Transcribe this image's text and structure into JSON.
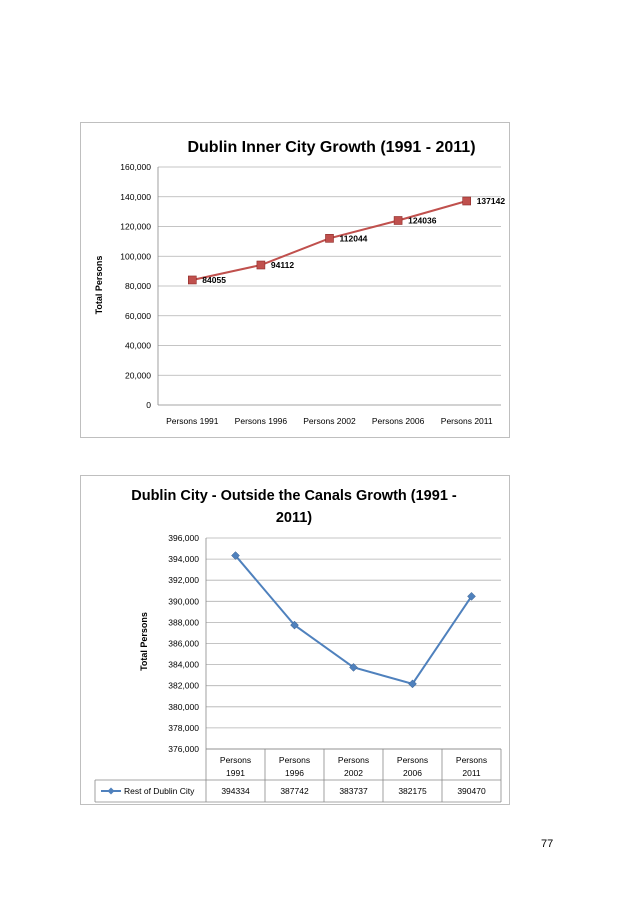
{
  "page": {
    "number": "77"
  },
  "chart_data": [
    {
      "type": "line",
      "title": "Dublin Inner City Growth (1991 - 2011)",
      "xlabel": "",
      "ylabel": "Total Persons",
      "categories": [
        "Persons 1991",
        "Persons 1996",
        "Persons 2002",
        "Persons 2006",
        "Persons 2011"
      ],
      "series": [
        {
          "values": [
            84055,
            94112,
            112044,
            124036,
            137142
          ],
          "color": "#c0504d"
        }
      ],
      "data_labels": [
        "84055",
        "94112",
        "112044",
        "124036",
        "137142"
      ],
      "yticks": [
        "0",
        "20,000",
        "40,000",
        "60,000",
        "80,000",
        "100,000",
        "120,000",
        "140,000",
        "160,000"
      ],
      "ylim": [
        0,
        160000
      ],
      "grid": true,
      "legend": "none"
    },
    {
      "type": "line",
      "title_lines": [
        "Dublin City - Outside the Canals Growth (1991 -",
        "2011)"
      ],
      "xlabel": "",
      "ylabel": "Total Persons",
      "categories": [
        [
          "Persons",
          "1991"
        ],
        [
          "Persons",
          "1996"
        ],
        [
          "Persons",
          "2002"
        ],
        [
          "Persons",
          "2006"
        ],
        [
          "Persons",
          "2011"
        ]
      ],
      "series": [
        {
          "name": "Rest of Dublin City",
          "values": [
            394334,
            387742,
            383737,
            382175,
            390470
          ],
          "color": "#4f81bd"
        }
      ],
      "table_values": [
        "394334",
        "387742",
        "383737",
        "382175",
        "390470"
      ],
      "yticks": [
        "376,000",
        "378,000",
        "380,000",
        "382,000",
        "384,000",
        "386,000",
        "388,000",
        "390,000",
        "392,000",
        "394,000",
        "396,000"
      ],
      "ylim": [
        376000,
        396000
      ],
      "grid": true,
      "legend": "data-table"
    }
  ]
}
